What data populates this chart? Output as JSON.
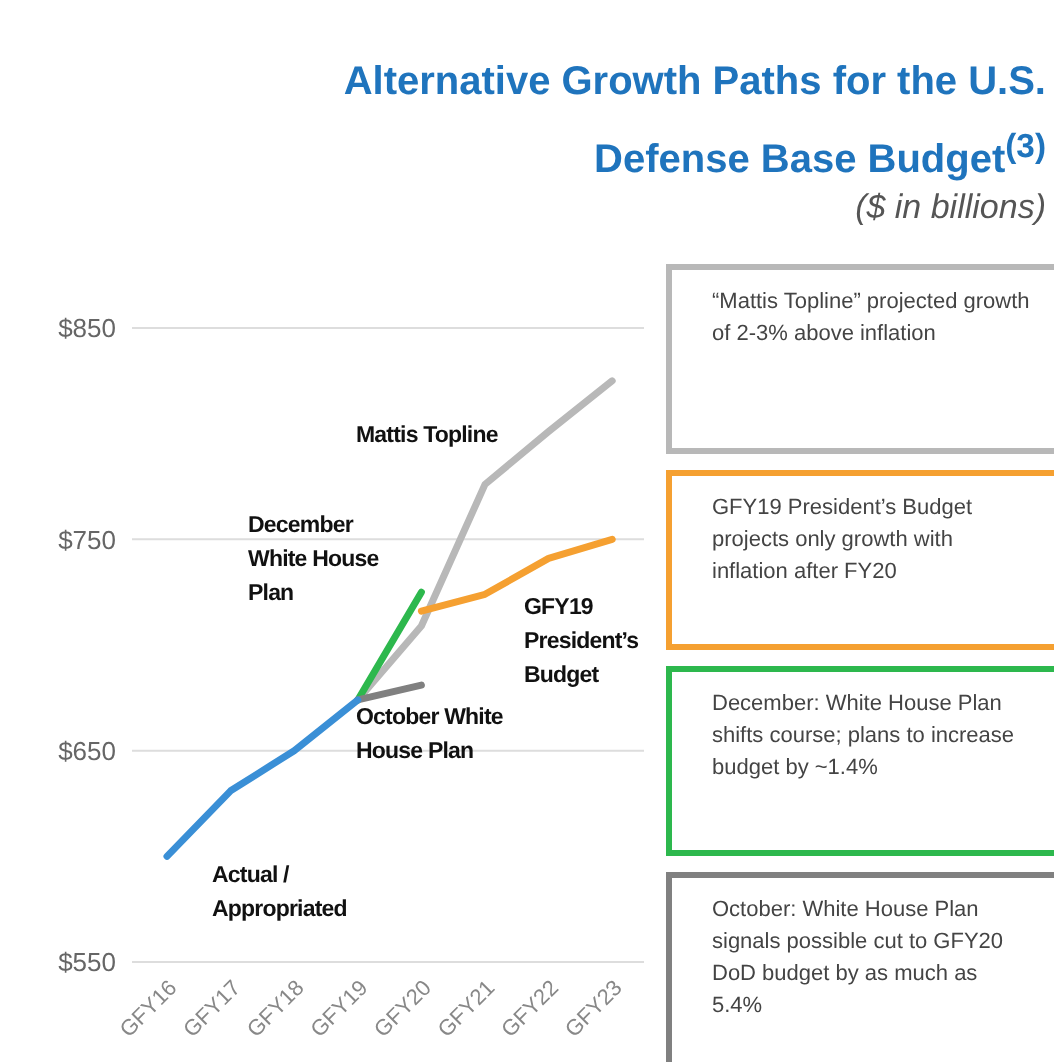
{
  "chart_data": {
    "type": "line",
    "title": "Alternative Growth Paths for the U.S. Defense Base Budget$^{(3)}$",
    "subtitle": "($ in billions)",
    "categories": [
      "GFY16",
      "GFY17",
      "GFY18",
      "GFY19",
      "GFY20",
      "GFY21",
      "GFY22",
      "GFY23"
    ],
    "series": [
      {
        "name": "Mattis Topline",
        "color": "#b8b8b8",
        "values": [
          null,
          null,
          null,
          674,
          709,
          776,
          801,
          825
        ]
      },
      {
        "name": "GFY19 President’s Budget",
        "color": "#f5a031",
        "values": [
          null,
          null,
          null,
          null,
          716,
          724,
          741,
          750
        ]
      },
      {
        "name": "December White House Plan",
        "color": "#2db84d",
        "values": [
          null,
          null,
          null,
          674,
          725,
          null,
          null,
          null
        ]
      },
      {
        "name": "October White House Plan",
        "color": "#808080",
        "values": [
          null,
          null,
          null,
          674,
          681,
          null,
          null,
          null
        ]
      },
      {
        "name": "Actual / Appropriated",
        "color": "#3a8fd6",
        "values": [
          600,
          631,
          650,
          674,
          null,
          null,
          null,
          null
        ]
      }
    ],
    "ylim": [
      550,
      850
    ],
    "yticks": [
      {
        "value": 550,
        "label": "$550"
      },
      {
        "value": 650,
        "label": "$650"
      },
      {
        "value": 750,
        "label": "$750"
      },
      {
        "value": 850,
        "label": "$850"
      }
    ],
    "grid": "y",
    "legend": false,
    "marker": "none",
    "line_style": "solid",
    "annotations": [
      "“Mattis Topline” projected growth of 2-3% above inflation",
      "GFY19 President’s Budget projects only growth with inflation after FY20",
      "December: White House Plan shifts course; plans to increase budget by ~1.4%",
      "October: White House Plan signals possible cut to GFY20 DoD budget by as much as 5.4%"
    ]
  }
}
